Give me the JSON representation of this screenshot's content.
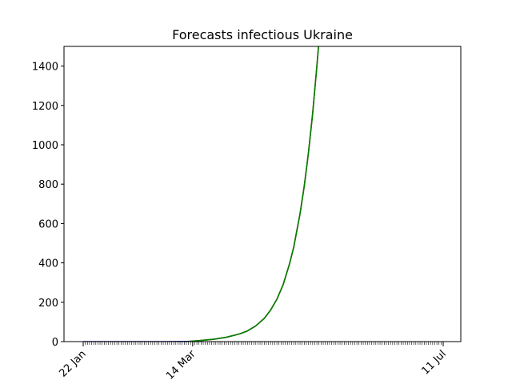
{
  "chart_data": {
    "type": "line",
    "title": "Forecasts infectious Ukraine",
    "xlabel": "",
    "ylabel": "",
    "x_start": "2020-01-22",
    "x_end": "2020-07-11",
    "xlim": [
      "2020-01-22",
      "2020-07-11"
    ],
    "ylim": [
      0,
      1500
    ],
    "grid": false,
    "legend": null,
    "x_ticks": [
      {
        "date": "2020-01-22",
        "label": "22 Jan"
      },
      {
        "date": "2020-03-14",
        "label": "14 Mar"
      },
      {
        "date": "2020-07-11",
        "label": "11 Jul"
      }
    ],
    "y_ticks": [
      0,
      200,
      400,
      600,
      800,
      1000,
      1200,
      1400
    ],
    "series": [
      {
        "color": "#0000aa",
        "x": [
          "2020-01-22",
          "2020-02-01",
          "2020-02-11",
          "2020-02-21",
          "2020-03-02",
          "2020-03-12"
        ],
        "y": [
          0,
          0,
          0,
          0,
          0,
          1
        ]
      },
      {
        "color": "#b22222",
        "x": [
          "2020-03-12",
          "2020-03-18",
          "2020-03-24",
          "2020-03-30",
          "2020-04-05",
          "2020-04-09",
          "2020-04-13",
          "2020-04-17",
          "2020-04-20",
          "2020-04-23",
          "2020-04-26",
          "2020-04-29",
          "2020-05-01",
          "2020-05-04",
          "2020-05-06",
          "2020-05-08",
          "2020-05-10",
          "2020-05-12",
          "2020-05-13"
        ],
        "y": [
          1,
          6,
          12,
          22,
          38,
          54,
          80,
          118,
          160,
          215,
          290,
          395,
          480,
          650,
          790,
          960,
          1160,
          1400,
          1530
        ]
      },
      {
        "color": "#008000",
        "x": [
          "2020-03-12",
          "2020-03-18",
          "2020-03-24",
          "2020-03-30",
          "2020-04-05",
          "2020-04-09",
          "2020-04-13",
          "2020-04-17",
          "2020-04-20",
          "2020-04-23",
          "2020-04-26",
          "2020-04-29",
          "2020-05-01",
          "2020-05-04",
          "2020-05-06",
          "2020-05-08",
          "2020-05-10",
          "2020-05-12",
          "2020-05-13"
        ],
        "y": [
          1,
          6,
          12,
          22,
          38,
          54,
          80,
          118,
          160,
          215,
          290,
          395,
          480,
          650,
          790,
          960,
          1160,
          1400,
          1530
        ]
      }
    ]
  }
}
